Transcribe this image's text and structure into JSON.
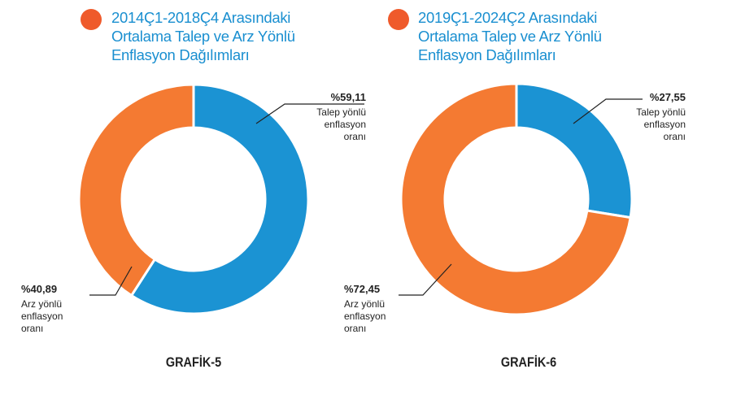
{
  "chart_data": [
    {
      "type": "pie",
      "title": "2014Ç1-2018Ç4 Arasındaki Ortalama Talep ve Arz Yönlü Enflasyon Dağılımları",
      "caption": "GRAFİK-5",
      "categories": [
        "Talep yönlü enflasyon oranı",
        "Arz yönlü enflasyon oranı"
      ],
      "values": [
        59.11,
        40.89
      ],
      "value_labels": [
        "%59,11",
        "%40,89"
      ],
      "colors": [
        "#1b93d3",
        "#f47a32"
      ]
    },
    {
      "type": "pie",
      "title": "2019Ç1-2024Ç2 Arasındaki Ortalama Talep ve Arz Yönlü Enflasyon Dağılımları",
      "caption": "GRAFİK-6",
      "categories": [
        "Talep yönlü enflasyon oranı",
        "Arz yönlü enflasyon oranı"
      ],
      "values": [
        27.55,
        72.45
      ],
      "value_labels": [
        "%27,55",
        "%72,45"
      ],
      "colors": [
        "#1b93d3",
        "#f47a32"
      ]
    }
  ]
}
